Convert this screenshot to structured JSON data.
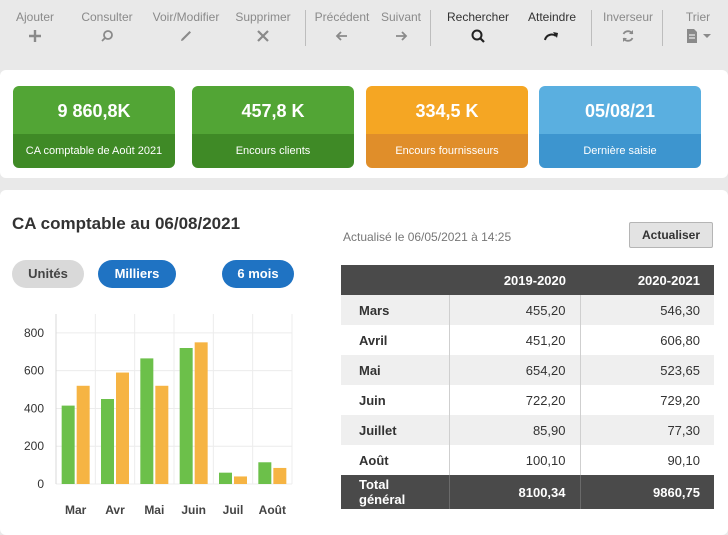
{
  "toolbar": {
    "ajouter": "Ajouter",
    "consulter": "Consulter",
    "voir_modifier": "Voir/Modifier",
    "supprimer": "Supprimer",
    "precedent": "Précédent",
    "suivant": "Suivant",
    "rechercher": "Rechercher",
    "atteindre": "Atteindre",
    "inverseur": "Inverseur",
    "trier": "Trier"
  },
  "kpis": [
    {
      "value": "9 860,8K",
      "caption": "CA comptable de Août 2021",
      "color_top": "#52a535",
      "color_bottom": "#3f8a26"
    },
    {
      "value": "457,8 K",
      "caption": "Encours clients",
      "color_top": "#52a535",
      "color_bottom": "#3f8a26"
    },
    {
      "value": "334,5 K",
      "caption": "Encours fournisseurs",
      "color_top": "#f5a623",
      "color_bottom": "#e08e2a"
    },
    {
      "value": "05/08/21",
      "caption": "Dernière saisie",
      "color_top": "#5aafe0",
      "color_bottom": "#3d95cf"
    }
  ],
  "main": {
    "title": "CA comptable au 06/08/2021",
    "updated": "Actualisé le 06/05/2021 à 14:25",
    "refresh_label": "Actualiser",
    "pills": {
      "unites": "Unités",
      "milliers": "Milliers",
      "six_mois": "6 mois"
    }
  },
  "chart_data": {
    "type": "bar",
    "categories": [
      "Mar",
      "Avr",
      "Mai",
      "Juin",
      "Juil",
      "Août"
    ],
    "series": [
      {
        "values": [
          415,
          450,
          665,
          720,
          60,
          115
        ],
        "color": "#6cc04a"
      },
      {
        "values": [
          520,
          590,
          520,
          750,
          40,
          85
        ],
        "color": "#f6b443"
      }
    ],
    "yticks": [
      "0",
      "200",
      "400",
      "600",
      "800"
    ],
    "ylim": [
      0,
      900
    ],
    "grid": true
  },
  "table": {
    "headers": [
      "",
      "2019-2020",
      "2020-2021"
    ],
    "rows": [
      [
        "Mars",
        "455,20",
        "546,30"
      ],
      [
        "Avril",
        "451,20",
        "606,80"
      ],
      [
        "Mai",
        "654,20",
        "523,65"
      ],
      [
        "Juin",
        "722,20",
        "729,20"
      ],
      [
        "Juillet",
        "85,90",
        "77,30"
      ],
      [
        "Août",
        "100,10",
        "90,10"
      ]
    ],
    "total": [
      "Total général",
      "8100,34",
      "9860,75"
    ]
  }
}
